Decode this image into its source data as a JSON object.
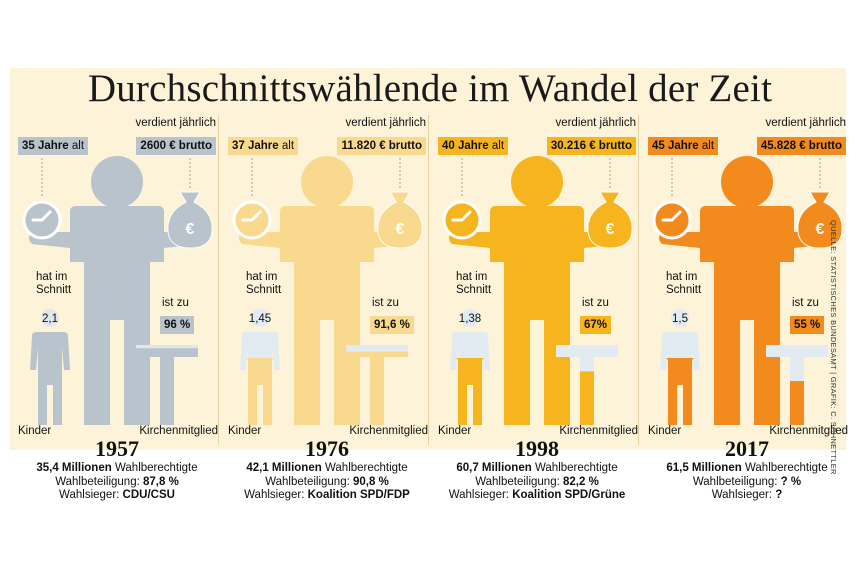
{
  "title": "Durchschnittswählende im Wandel der Zeit",
  "source": "QUELLE: STATISTISCHES BUNDESAMT | GRAFIK: C. SCHNETTLER",
  "common": {
    "earn_caption": "verdient jährlich",
    "age_unit": "alt",
    "kids_caption_1": "hat im",
    "kids_caption_2": "Schnitt",
    "church_caption": "ist zu",
    "kinder_label": "Kinder",
    "church_label": "Kirchenmitglied",
    "eligible_unit": "Wahlberechtigte",
    "turnout_label": "Wahlbeteiligung:",
    "winner_label": "Wahlsieger:"
  },
  "panels": [
    {
      "year": "1957",
      "age": "35 Jahre",
      "earnings": "2600 € brutto",
      "kids": "2,1",
      "church_pct": "96 %",
      "church_fraction": 0.96,
      "eligible": "35,4 Millionen",
      "turnout": "87,8 %",
      "winner": "CDU/CSU",
      "color": "#b8c3cc",
      "box_color": "#b8c3cc",
      "light_color": "#dfe6ec"
    },
    {
      "year": "1976",
      "age": "37 Jahre",
      "earnings": "11.820 € brutto",
      "kids": "1,45",
      "church_pct": "91,6 %",
      "church_fraction": 0.916,
      "eligible": "42,1 Millionen",
      "turnout": "90,8 %",
      "winner": "Koalition SPD/FDP",
      "color": "#f9d98e",
      "box_color": "#f9d98e",
      "light_color": "#e3ebf2"
    },
    {
      "year": "1998",
      "age": "40 Jahre",
      "earnings": "30.216 € brutto",
      "kids": "1,38",
      "church_pct": "67%",
      "church_fraction": 0.67,
      "eligible": "60,7 Millionen",
      "turnout": "82,2 %",
      "winner": "Koalition SPD/Grüne",
      "color": "#f6b51e",
      "box_color": "#f6b51e",
      "light_color": "#e3ebf2"
    },
    {
      "year": "2017",
      "age": "45 Jahre",
      "earnings": "45.828 € brutto",
      "kids": "1,5",
      "church_pct": "55 %",
      "church_fraction": 0.55,
      "eligible": "61,5 Millionen",
      "turnout": "? %",
      "winner": "?",
      "color": "#f28a1e",
      "box_color": "#f28a1e",
      "light_color": "#e3ebf2"
    }
  ]
}
